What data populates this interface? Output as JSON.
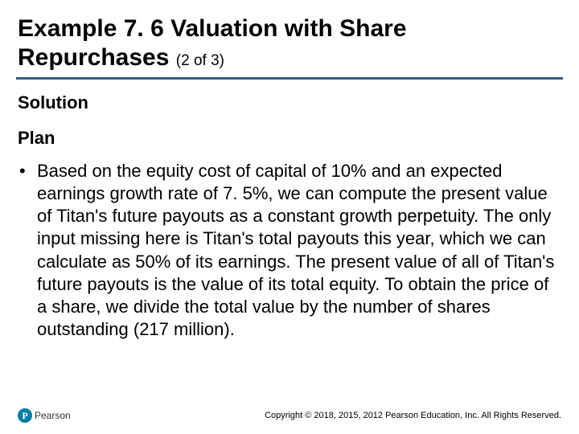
{
  "title": {
    "main": "Example 7. 6 Valuation with Share Repurchases ",
    "sub": "(2 of 3)"
  },
  "sections": {
    "solution": "Solution",
    "plan": "Plan"
  },
  "bullet": {
    "marker": "•",
    "text": "Based on the equity cost of capital of 10% and an expected earnings growth rate of 7. 5%, we can compute the present value of Titan's future payouts as a constant growth perpetuity. The only input missing here is Titan's total payouts this year, which we can calculate as 50% of its earnings. The present value of all of Titan's future payouts is the value of its total equity. To obtain the price of a share, we divide the total value by the number of shares outstanding (217 million)."
  },
  "footer": {
    "logo_letter": "P",
    "logo_text": "Pearson",
    "copyright": "Copyright © 2018, 2015, 2012 Pearson Education, Inc. All Rights Reserved."
  },
  "colors": {
    "rule": "#305e8a",
    "logo_bg": "#007fa3",
    "text": "#000000",
    "background": "#ffffff"
  }
}
